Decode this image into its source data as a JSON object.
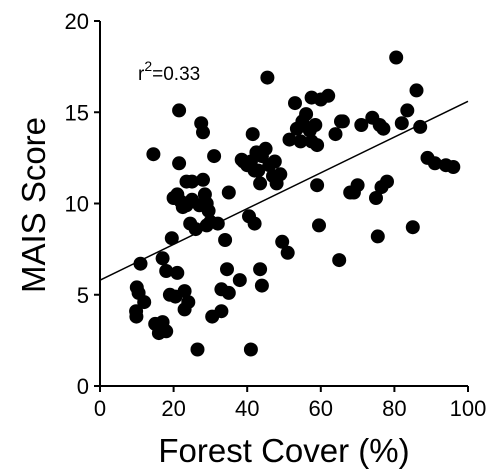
{
  "chart_data": {
    "type": "scatter",
    "title": "",
    "xlabel": "Forest Cover (%)",
    "ylabel": "MAIS Score",
    "xlim": [
      0,
      100
    ],
    "ylim": [
      0,
      20
    ],
    "xticks": [
      "0",
      "20",
      "40",
      "60",
      "80",
      "100"
    ],
    "yticks": [
      "0",
      "5",
      "10",
      "15",
      "20"
    ],
    "grid": false,
    "annotation": {
      "base": "r",
      "exp": "2",
      "rest": "=0.33"
    },
    "trendline": {
      "x": [
        0,
        100
      ],
      "y": [
        5.8,
        15.6
      ]
    },
    "points": [
      [
        9.8,
        4.1
      ],
      [
        9.9,
        3.8
      ],
      [
        10,
        5.4
      ],
      [
        10.5,
        5.1
      ],
      [
        11,
        6.7
      ],
      [
        12,
        4.6
      ],
      [
        14.5,
        12.7
      ],
      [
        15,
        3.4
      ],
      [
        16,
        2.9
      ],
      [
        17,
        7.0
      ],
      [
        17,
        3.5
      ],
      [
        18,
        6.3
      ],
      [
        18,
        3.0
      ],
      [
        19,
        5.0
      ],
      [
        19.5,
        8.1
      ],
      [
        20,
        10.3
      ],
      [
        20.5,
        4.9
      ],
      [
        21,
        6.2
      ],
      [
        21,
        10.5
      ],
      [
        21.5,
        15.1
      ],
      [
        21.5,
        12.2
      ],
      [
        22,
        10.1
      ],
      [
        22.5,
        9.8
      ],
      [
        23,
        4.2
      ],
      [
        23,
        5.2
      ],
      [
        23.5,
        9.9
      ],
      [
        23.5,
        11.2
      ],
      [
        24,
        4.6
      ],
      [
        24.5,
        8.9
      ],
      [
        25,
        11.2
      ],
      [
        25,
        10.2
      ],
      [
        26,
        8.6
      ],
      [
        26.5,
        2.0
      ],
      [
        27,
        9.9
      ],
      [
        27.5,
        14.4
      ],
      [
        28,
        13.9
      ],
      [
        28,
        11.3
      ],
      [
        28.5,
        10.5
      ],
      [
        29,
        10.0
      ],
      [
        29,
        8.8
      ],
      [
        29.5,
        9.6
      ],
      [
        30,
        9.0
      ],
      [
        30.5,
        3.8
      ],
      [
        31,
        12.6
      ],
      [
        32,
        8.9
      ],
      [
        33,
        4.1
      ],
      [
        33,
        5.3
      ],
      [
        34,
        8.0
      ],
      [
        34.5,
        6.4
      ],
      [
        35,
        5.1
      ],
      [
        35,
        10.6
      ],
      [
        38,
        5.8
      ],
      [
        38.5,
        12.4
      ],
      [
        39,
        12.3
      ],
      [
        40,
        12.1
      ],
      [
        40.5,
        9.3
      ],
      [
        41,
        12.3
      ],
      [
        41,
        2.0
      ],
      [
        41.5,
        13.8
      ],
      [
        42,
        11.8
      ],
      [
        42,
        8.9
      ],
      [
        42.5,
        12.8
      ],
      [
        43,
        11.8
      ],
      [
        43.5,
        6.4
      ],
      [
        43.5,
        11.1
      ],
      [
        44,
        5.5
      ],
      [
        44,
        12.6
      ],
      [
        45,
        13.0
      ],
      [
        45.5,
        16.9
      ],
      [
        46,
        12.1
      ],
      [
        47,
        11.5
      ],
      [
        47.5,
        12.3
      ],
      [
        48,
        11.1
      ],
      [
        49,
        11.6
      ],
      [
        49.5,
        7.9
      ],
      [
        51,
        7.3
      ],
      [
        51.5,
        13.5
      ],
      [
        53,
        15.5
      ],
      [
        53.5,
        14.1
      ],
      [
        54.5,
        13.4
      ],
      [
        55,
        14.5
      ],
      [
        56,
        14.9
      ],
      [
        57,
        14.0
      ],
      [
        57.5,
        15.8
      ],
      [
        57.5,
        13.4
      ],
      [
        58.5,
        14.3
      ],
      [
        59,
        13.2
      ],
      [
        59,
        11.0
      ],
      [
        59.5,
        8.8
      ],
      [
        60,
        15.7
      ],
      [
        62,
        15.9
      ],
      [
        64,
        13.8
      ],
      [
        65,
        6.9
      ],
      [
        65.5,
        14.5
      ],
      [
        66,
        14.5
      ],
      [
        68,
        10.6
      ],
      [
        69,
        10.6
      ],
      [
        70,
        11.0
      ],
      [
        71,
        14.3
      ],
      [
        74,
        14.7
      ],
      [
        75,
        10.3
      ],
      [
        75.5,
        8.2
      ],
      [
        76,
        14.3
      ],
      [
        76.5,
        10.9
      ],
      [
        77,
        14.1
      ],
      [
        78,
        11.2
      ],
      [
        80.5,
        18.0
      ],
      [
        82,
        14.4
      ],
      [
        83.5,
        15.1
      ],
      [
        85,
        8.7
      ],
      [
        86,
        16.2
      ],
      [
        87,
        14.2
      ],
      [
        89,
        12.5
      ],
      [
        91,
        12.2
      ],
      [
        94,
        12.1
      ],
      [
        96,
        12.0
      ]
    ]
  }
}
